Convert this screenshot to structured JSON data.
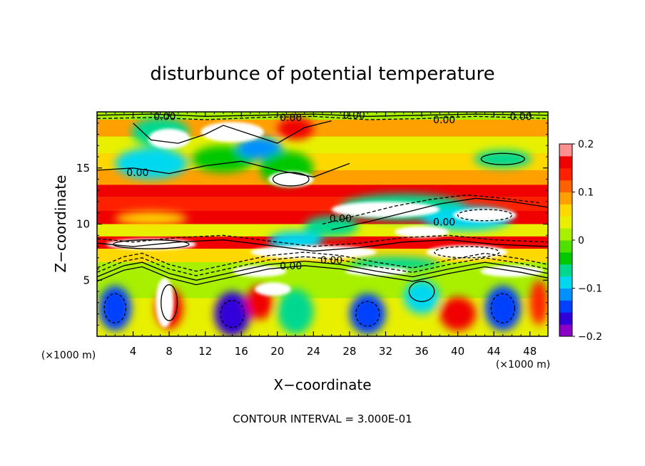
{
  "chart_data": {
    "type": "heatmap",
    "title": "disturbunce of potential temperature",
    "xlabel": "X−coordinate",
    "ylabel": "Z−coordinate",
    "xlim": [
      0,
      50
    ],
    "ylim": [
      0,
      20
    ],
    "x_ticks": [
      4,
      8,
      12,
      16,
      20,
      24,
      28,
      32,
      36,
      40,
      44,
      48
    ],
    "y_ticks": [
      5,
      10,
      15
    ],
    "x_unit": "(×1000 m)",
    "y_unit": "(×1000 m)",
    "colorbar": {
      "range": [
        -0.2,
        0.2
      ],
      "ticks": [
        0.2,
        0.1,
        0,
        -0.1,
        -0.2
      ],
      "tick_labels": [
        "0.2",
        "0.1",
        "0",
        "−0.1",
        "−0.2"
      ],
      "colors": [
        "#8a00c8",
        "#3000d8",
        "#0040ff",
        "#0090ff",
        "#00d8f0",
        "#00d890",
        "#00c800",
        "#50e000",
        "#a8f000",
        "#e8f000",
        "#ffd800",
        "#ffa000",
        "#ff6000",
        "#ff2000",
        "#f00000",
        "#ff9090"
      ]
    },
    "contour_label": "0.00",
    "annotation": "CONTOUR INTERVAL = 3.000E-01",
    "bands": [
      {
        "z": [
          19.3,
          20.0
        ],
        "value": 0.0
      },
      {
        "z": [
          17.8,
          19.3
        ],
        "value": 0.09
      },
      {
        "z": [
          16.3,
          17.8
        ],
        "value": 0.04
      },
      {
        "z": [
          14.8,
          16.3
        ],
        "value": 0.06
      },
      {
        "z": [
          13.5,
          14.8
        ],
        "value": 0.08
      },
      {
        "z": [
          12.4,
          13.5
        ],
        "value": 0.16
      },
      {
        "z": [
          11.2,
          12.4
        ],
        "value": 0.13
      },
      {
        "z": [
          10.0,
          11.2
        ],
        "value": 0.17
      },
      {
        "z": [
          8.9,
          10.0
        ],
        "value": 0.03
      },
      {
        "z": [
          7.8,
          8.9
        ],
        "value": 0.17
      },
      {
        "z": [
          6.6,
          7.8
        ],
        "value": 0.05
      },
      {
        "z": [
          5.2,
          6.6
        ],
        "value": 0.0
      },
      {
        "z": [
          3.4,
          5.2
        ],
        "value": 0.01
      },
      {
        "z": [
          0.0,
          3.4
        ],
        "value": 0.04
      }
    ],
    "anomalies": [
      {
        "x": 7,
        "z": 18.2,
        "rx": 3.2,
        "rz": 1.3,
        "value": -0.06
      },
      {
        "x": 6,
        "z": 15.4,
        "rx": 4.0,
        "rz": 1.4,
        "value": -0.08
      },
      {
        "x": 14,
        "z": 15.8,
        "rx": 3.5,
        "rz": 1.2,
        "value": -0.05
      },
      {
        "x": 18,
        "z": 16.8,
        "rx": 2.5,
        "rz": 1.0,
        "value": -0.12
      },
      {
        "x": 21,
        "z": 15.0,
        "rx": 3.0,
        "rz": 1.5,
        "value": -0.05
      },
      {
        "x": 22,
        "z": 18.5,
        "rx": 2.0,
        "rz": 1.0,
        "value": 0.17
      },
      {
        "x": 45,
        "z": 15.8,
        "rx": 3.2,
        "rz": 0.8,
        "value": -0.06
      },
      {
        "x": 34,
        "z": 11.5,
        "rx": 7.0,
        "rz": 1.2,
        "value": -0.06
      },
      {
        "x": 41,
        "z": 10.5,
        "rx": 5.0,
        "rz": 1.1,
        "value": -0.08
      },
      {
        "x": 26,
        "z": 9.8,
        "rx": 3.0,
        "rz": 0.9,
        "value": -0.07
      },
      {
        "x": 6,
        "z": 10.5,
        "rx": 4.0,
        "rz": 0.6,
        "value": 0.05
      },
      {
        "x": 22,
        "z": 8.5,
        "rx": 3.0,
        "rz": 0.9,
        "value": -0.08
      },
      {
        "x": 2,
        "z": 2.5,
        "rx": 1.8,
        "rz": 2.0,
        "value": -0.13
      },
      {
        "x": 8,
        "z": 2.5,
        "rx": 1.5,
        "rz": 1.8,
        "value": 0.17
      },
      {
        "x": 15,
        "z": 2.0,
        "rx": 2.0,
        "rz": 2.0,
        "value": -0.17
      },
      {
        "x": 18,
        "z": 3.0,
        "rx": 1.5,
        "rz": 1.5,
        "value": 0.16
      },
      {
        "x": 22,
        "z": 2.2,
        "rx": 2.0,
        "rz": 2.0,
        "value": -0.06
      },
      {
        "x": 30,
        "z": 2.0,
        "rx": 2.0,
        "rz": 1.8,
        "value": -0.15
      },
      {
        "x": 36,
        "z": 3.5,
        "rx": 2.0,
        "rz": 1.5,
        "value": -0.08
      },
      {
        "x": 40,
        "z": 2.0,
        "rx": 2.0,
        "rz": 1.5,
        "value": 0.17
      },
      {
        "x": 45,
        "z": 2.5,
        "rx": 2.0,
        "rz": 2.0,
        "value": -0.14
      },
      {
        "x": 49,
        "z": 3.0,
        "rx": 1.0,
        "rz": 2.0,
        "value": 0.15
      },
      {
        "x": 33,
        "z": 6.5,
        "rx": 5.0,
        "rz": 0.6,
        "value": -0.07
      }
    ],
    "white_regions": [
      {
        "x": 8,
        "z": 17.6,
        "rx": 2.3,
        "rz": 0.9
      },
      {
        "x": 15,
        "z": 18.2,
        "rx": 3.5,
        "rz": 0.9
      },
      {
        "x": 21.5,
        "z": 14.0,
        "rx": 2.5,
        "rz": 0.7
      },
      {
        "x": 32,
        "z": 11.3,
        "rx": 6.0,
        "rz": 0.7
      },
      {
        "x": 43,
        "z": 10.8,
        "rx": 3.5,
        "rz": 0.6
      },
      {
        "x": 36,
        "z": 9.3,
        "rx": 3.0,
        "rz": 0.5
      },
      {
        "x": 6,
        "z": 8.2,
        "rx": 5.0,
        "rz": 0.5
      },
      {
        "x": 24,
        "z": 7.5,
        "rx": 7.0,
        "rz": 0.6
      },
      {
        "x": 41,
        "z": 7.5,
        "rx": 4.5,
        "rz": 0.6
      },
      {
        "x": 18,
        "z": 5.8,
        "rx": 3.0,
        "rz": 0.5
      },
      {
        "x": 31,
        "z": 5.8,
        "rx": 3.5,
        "rz": 0.4
      },
      {
        "x": 46,
        "z": 5.8,
        "rx": 3.5,
        "rz": 0.5
      },
      {
        "x": 7.5,
        "z": 3.0,
        "rx": 1.0,
        "rz": 2.2
      },
      {
        "x": 19.5,
        "z": 4.2,
        "rx": 2.0,
        "rz": 0.6
      }
    ],
    "contour_labels": [
      {
        "x": 7.5,
        "z": 19.6
      },
      {
        "x": 21.5,
        "z": 19.5
      },
      {
        "x": 28.5,
        "z": 19.7
      },
      {
        "x": 38.5,
        "z": 19.3
      },
      {
        "x": 47,
        "z": 19.6
      },
      {
        "x": 4.5,
        "z": 14.6
      },
      {
        "x": 27,
        "z": 10.5
      },
      {
        "x": 38.5,
        "z": 10.2
      },
      {
        "x": 21.5,
        "z": 6.3
      },
      {
        "x": 26,
        "z": 6.8
      }
    ],
    "contour_polylines": [
      {
        "dashed": false,
        "points": [
          [
            0,
            5.3
          ],
          [
            3,
            6.3
          ],
          [
            5,
            6.6
          ],
          [
            8,
            5.6
          ],
          [
            11,
            5.0
          ],
          [
            15,
            5.7
          ],
          [
            19,
            6.4
          ],
          [
            23,
            6.7
          ],
          [
            27,
            6.4
          ],
          [
            31,
            5.8
          ],
          [
            35,
            5.3
          ],
          [
            39,
            6.0
          ],
          [
            43,
            6.6
          ],
          [
            47,
            6.1
          ],
          [
            50,
            5.6
          ]
        ]
      },
      {
        "dashed": true,
        "points": [
          [
            0,
            5.7
          ],
          [
            3,
            6.7
          ],
          [
            5,
            7.0
          ],
          [
            8,
            6.0
          ],
          [
            11,
            5.4
          ],
          [
            15,
            6.1
          ],
          [
            19,
            6.8
          ],
          [
            23,
            7.1
          ],
          [
            27,
            6.8
          ],
          [
            31,
            6.2
          ],
          [
            35,
            5.7
          ],
          [
            39,
            6.4
          ],
          [
            43,
            7.0
          ],
          [
            47,
            6.5
          ],
          [
            50,
            6.0
          ]
        ]
      },
      {
        "dashed": true,
        "points": [
          [
            0,
            6.1
          ],
          [
            3,
            7.1
          ],
          [
            5,
            7.4
          ],
          [
            8,
            6.4
          ],
          [
            11,
            5.8
          ],
          [
            15,
            6.5
          ],
          [
            19,
            7.2
          ],
          [
            23,
            7.5
          ],
          [
            27,
            7.2
          ],
          [
            31,
            6.6
          ],
          [
            35,
            6.1
          ],
          [
            39,
            6.8
          ],
          [
            43,
            7.4
          ],
          [
            47,
            6.9
          ],
          [
            50,
            6.4
          ]
        ]
      },
      {
        "dashed": false,
        "points": [
          [
            0,
            4.9
          ],
          [
            3,
            5.9
          ],
          [
            5,
            6.2
          ],
          [
            8,
            5.2
          ],
          [
            11,
            4.6
          ],
          [
            15,
            5.3
          ],
          [
            19,
            6.0
          ],
          [
            23,
            6.3
          ],
          [
            27,
            6.0
          ],
          [
            31,
            5.4
          ],
          [
            35,
            4.9
          ],
          [
            39,
            5.6
          ],
          [
            43,
            6.2
          ],
          [
            47,
            5.7
          ],
          [
            50,
            5.2
          ]
        ]
      },
      {
        "dashed": false,
        "points": [
          [
            0,
            8.3
          ],
          [
            4,
            8.0
          ],
          [
            9,
            8.4
          ],
          [
            14,
            8.6
          ],
          [
            19,
            8.1
          ],
          [
            24,
            7.6
          ],
          [
            29,
            7.9
          ],
          [
            34,
            8.4
          ],
          [
            39,
            8.6
          ],
          [
            44,
            8.2
          ],
          [
            50,
            8.0
          ]
        ]
      },
      {
        "dashed": true,
        "points": [
          [
            0,
            8.7
          ],
          [
            4,
            8.4
          ],
          [
            9,
            8.8
          ],
          [
            14,
            9.0
          ],
          [
            19,
            8.5
          ],
          [
            24,
            8.0
          ],
          [
            29,
            8.3
          ],
          [
            34,
            8.8
          ],
          [
            39,
            9.0
          ],
          [
            44,
            8.6
          ],
          [
            50,
            8.4
          ]
        ]
      },
      {
        "dashed": false,
        "points": [
          [
            0,
            19.7
          ],
          [
            6,
            19.8
          ],
          [
            12,
            19.6
          ],
          [
            18,
            19.7
          ],
          [
            24,
            19.8
          ],
          [
            30,
            19.6
          ],
          [
            36,
            19.7
          ],
          [
            42,
            19.8
          ],
          [
            50,
            19.7
          ]
        ]
      },
      {
        "dashed": true,
        "points": [
          [
            0,
            19.4
          ],
          [
            6,
            19.5
          ],
          [
            12,
            19.3
          ],
          [
            18,
            19.5
          ],
          [
            24,
            19.6
          ],
          [
            30,
            19.3
          ],
          [
            36,
            19.4
          ],
          [
            42,
            19.6
          ],
          [
            50,
            19.4
          ]
        ]
      },
      {
        "dashed": false,
        "points": [
          [
            26,
            9.5
          ],
          [
            30,
            10.2
          ],
          [
            34,
            11.0
          ],
          [
            38,
            11.8
          ],
          [
            42,
            12.3
          ],
          [
            46,
            12.0
          ],
          [
            50,
            11.5
          ]
        ]
      },
      {
        "dashed": true,
        "points": [
          [
            25,
            10.0
          ],
          [
            29,
            10.8
          ],
          [
            33,
            11.6
          ],
          [
            37,
            12.2
          ],
          [
            41,
            12.6
          ],
          [
            45,
            12.3
          ],
          [
            49,
            11.9
          ]
        ]
      },
      {
        "dashed": false,
        "points": [
          [
            0,
            14.8
          ],
          [
            4,
            15.0
          ],
          [
            8,
            14.5
          ],
          [
            12,
            15.2
          ],
          [
            16,
            15.6
          ],
          [
            20,
            14.8
          ],
          [
            24,
            14.2
          ],
          [
            28,
            15.4
          ]
        ]
      },
      {
        "dashed": false,
        "points": [
          [
            4,
            19.0
          ],
          [
            6,
            17.5
          ],
          [
            9,
            17.2
          ],
          [
            12,
            18.0
          ],
          [
            14,
            18.8
          ],
          [
            17,
            18.0
          ],
          [
            20,
            17.2
          ],
          [
            23,
            18.6
          ],
          [
            26,
            19.2
          ]
        ]
      }
    ],
    "contour_ellipses": [
      {
        "x": 2,
        "z": 2.5,
        "rx": 1.2,
        "rz": 1.3,
        "dashed": true
      },
      {
        "x": 15,
        "z": 2.0,
        "rx": 1.3,
        "rz": 1.2,
        "dashed": true
      },
      {
        "x": 30,
        "z": 2.0,
        "rx": 1.3,
        "rz": 1.1,
        "dashed": true
      },
      {
        "x": 45,
        "z": 2.5,
        "rx": 1.3,
        "rz": 1.3,
        "dashed": true
      },
      {
        "x": 8,
        "z": 3.0,
        "rx": 0.9,
        "rz": 1.6,
        "dashed": false
      },
      {
        "x": 36,
        "z": 4.0,
        "rx": 1.4,
        "rz": 0.9,
        "dashed": false
      },
      {
        "x": 45,
        "z": 15.8,
        "rx": 2.4,
        "rz": 0.5,
        "dashed": false
      },
      {
        "x": 21.5,
        "z": 14.0,
        "rx": 2.0,
        "rz": 0.6,
        "dashed": false
      },
      {
        "x": 43,
        "z": 10.8,
        "rx": 3.0,
        "rz": 0.5,
        "dashed": true
      },
      {
        "x": 6,
        "z": 8.2,
        "rx": 4.2,
        "rz": 0.4,
        "dashed": false
      },
      {
        "x": 41,
        "z": 7.5,
        "rx": 3.6,
        "rz": 0.5,
        "dashed": true
      }
    ]
  }
}
